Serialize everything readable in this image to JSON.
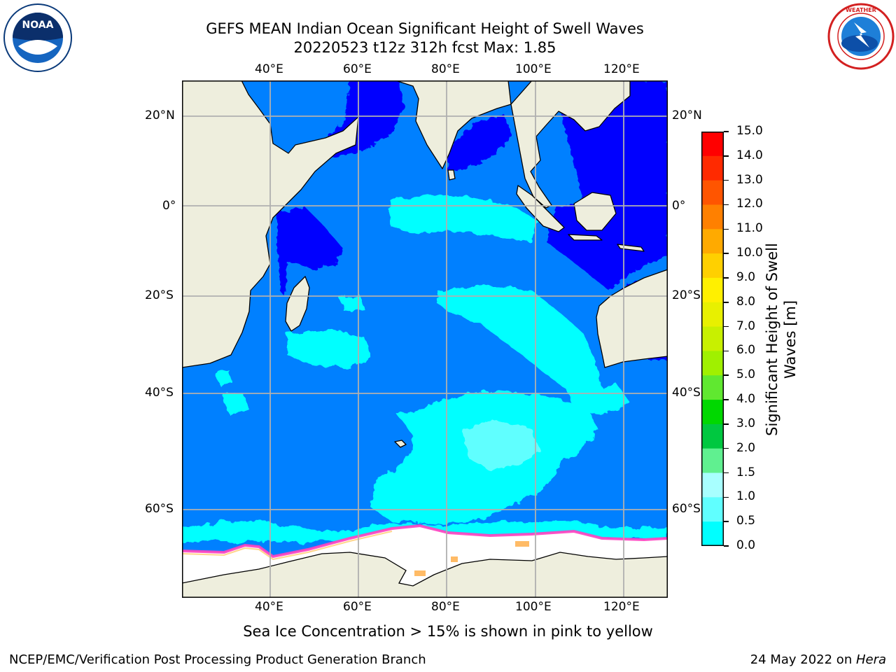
{
  "title": {
    "line1": "GEFS MEAN Indian Ocean Significant Height of Swell Waves",
    "line2": "20220523 t12z 312h fcst   Max: 1.85"
  },
  "map": {
    "lon_ticks": [
      "40°E",
      "60°E",
      "80°E",
      "100°E",
      "120°E"
    ],
    "lat_ticks": [
      "20°N",
      "0°",
      "20°S",
      "40°S",
      "60°S"
    ],
    "extent": {
      "lon": [
        20,
        130
      ],
      "lat": [
        -72,
        28
      ]
    },
    "grid": true
  },
  "colorbar": {
    "title_line1": "Significant Height of Swell",
    "title_line2": "Waves [m]",
    "labels": [
      "15.0",
      "14.0",
      "13.0",
      "12.0",
      "11.0",
      "10.0",
      "9.0",
      "8.0",
      "7.0",
      "6.0",
      "5.0",
      "4.0",
      "3.0",
      "2.0",
      "1.5",
      "1.0",
      "0.5",
      "0.0"
    ],
    "colors": [
      "#ff0000",
      "#ff2a00",
      "#ff5500",
      "#ff8000",
      "#ffaa00",
      "#ffd000",
      "#fff000",
      "#e8f000",
      "#c8f000",
      "#a0f000",
      "#60e830",
      "#00d800",
      "#00c840",
      "#60f090",
      "#a8ffff",
      "#60ffff",
      "#00ffff",
      "#0080ff",
      "#0000ff"
    ]
  },
  "logos": {
    "noaa": {
      "text": "NOAA",
      "ring_text": "NATIONAL OCEANIC AND ATMOSPHERIC ADMINISTRATION · U.S. DEPARTMENT OF COMMERCE"
    },
    "nws": {
      "ring_text": "NATIONAL WEATHER SERVICE"
    }
  },
  "caption": "Sea Ice Concentration > 15% is shown in pink to yellow",
  "footer": {
    "left": "NCEP/EMC/Verification Post Processing Product Generation Branch",
    "right_date": "24 May 2022 on ",
    "right_host": "Hera"
  },
  "colors": {
    "ocean_main": "#0080ff",
    "ocean_calm": "#0000ff",
    "swell_cyan": "#00ffff",
    "swell_light": "#60ffff",
    "land": "#eeeedd",
    "ice": "#ffffff",
    "ice_edge": "#ff40c0",
    "grid": "#b0b0b0"
  }
}
